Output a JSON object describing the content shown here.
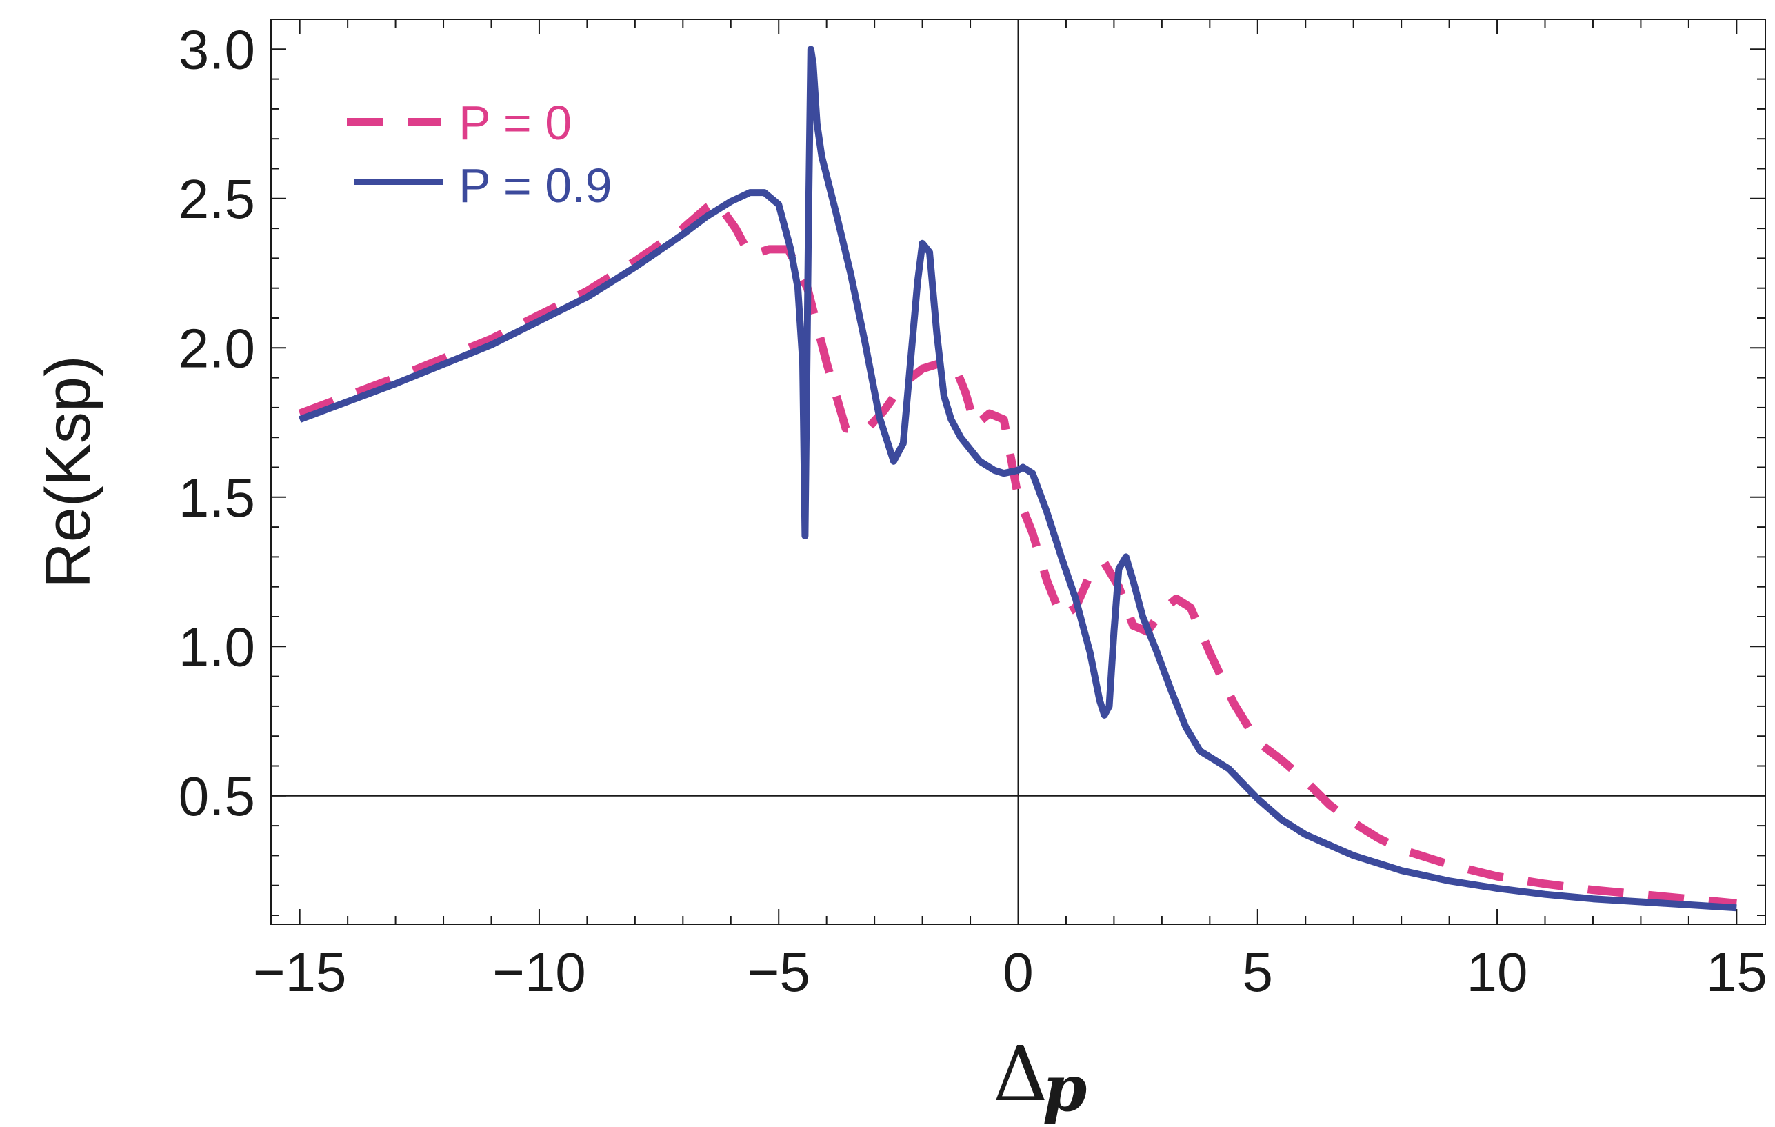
{
  "chart_data": {
    "type": "line",
    "title": "",
    "xlabel": "Δ",
    "xlabel_subscript": "p",
    "ylabel": "Re(Ksp)",
    "xlim": [
      -15.6,
      15.6
    ],
    "ylim": [
      0.07,
      3.1
    ],
    "x_ticks": [
      -15,
      -10,
      -5,
      0,
      5,
      10,
      15
    ],
    "x_tick_labels": [
      "−15",
      "−10",
      "−5",
      "0",
      "5",
      "10",
      "15"
    ],
    "y_ticks": [
      0.5,
      1.0,
      1.5,
      2.0,
      2.5,
      3.0
    ],
    "y_tick_labels": [
      "0.5",
      "1.0",
      "1.5",
      "2.0",
      "2.5",
      "3.0"
    ],
    "reference_lines": {
      "x": 0,
      "y": 0.5
    },
    "colors": {
      "p0": "#de3d8a",
      "p09": "#3c4a9c",
      "axis": "#1a1a1a"
    },
    "legend_position": "top-left",
    "series": [
      {
        "name": "P = 0",
        "style": "dashed",
        "color": "#de3d8a",
        "x": [
          -15,
          -13,
          -11,
          -9,
          -8,
          -7,
          -6.5,
          -6.3,
          -5.9,
          -5.6,
          -5.2,
          -4.8,
          -4.4,
          -4.0,
          -3.6,
          -3.2,
          -2.8,
          -2.4,
          -2.0,
          -1.6,
          -1.3,
          -1.1,
          -0.9,
          -0.6,
          -0.3,
          0,
          0.3,
          0.6,
          0.9,
          1.2,
          1.5,
          1.8,
          2.1,
          2.4,
          2.7,
          3.0,
          3.3,
          3.6,
          4.0,
          4.5,
          5.0,
          5.5,
          6.0,
          6.5,
          7.0,
          7.5,
          8.0,
          9.0,
          10,
          11,
          12,
          13,
          14,
          15
        ],
        "y": [
          1.78,
          1.9,
          2.03,
          2.19,
          2.29,
          2.4,
          2.47,
          2.49,
          2.4,
          2.31,
          2.33,
          2.33,
          2.2,
          1.95,
          1.73,
          1.72,
          1.79,
          1.88,
          1.93,
          1.95,
          1.93,
          1.85,
          1.74,
          1.78,
          1.76,
          1.5,
          1.38,
          1.22,
          1.1,
          1.13,
          1.24,
          1.28,
          1.2,
          1.07,
          1.05,
          1.12,
          1.16,
          1.13,
          0.98,
          0.81,
          0.68,
          0.62,
          0.55,
          0.47,
          0.41,
          0.36,
          0.32,
          0.27,
          0.23,
          0.205,
          0.185,
          0.17,
          0.155,
          0.14
        ]
      },
      {
        "name": "P = 0.9",
        "style": "solid",
        "color": "#3c4a9c",
        "x": [
          -15,
          -13,
          -11,
          -9,
          -8,
          -7,
          -6.5,
          -6.0,
          -5.6,
          -5.3,
          -5.0,
          -4.75,
          -4.6,
          -4.5,
          -4.45,
          -4.42,
          -4.38,
          -4.33,
          -4.28,
          -4.2,
          -4.1,
          -3.8,
          -3.5,
          -3.2,
          -2.9,
          -2.6,
          -2.4,
          -2.25,
          -2.1,
          -2.0,
          -1.85,
          -1.7,
          -1.55,
          -1.4,
          -1.2,
          -1.0,
          -0.8,
          -0.5,
          -0.3,
          0,
          0.1,
          0.3,
          0.6,
          0.9,
          1.2,
          1.5,
          1.7,
          1.8,
          1.9,
          2.0,
          2.1,
          2.25,
          2.4,
          2.6,
          2.9,
          3.2,
          3.5,
          3.8,
          4.1,
          4.4,
          4.7,
          5.0,
          5.5,
          6.0,
          7.0,
          8.0,
          9.0,
          10,
          11,
          12,
          13,
          14,
          15
        ],
        "y": [
          1.76,
          1.88,
          2.01,
          2.17,
          2.27,
          2.38,
          2.44,
          2.49,
          2.52,
          2.52,
          2.48,
          2.33,
          2.2,
          1.95,
          1.37,
          1.8,
          2.4,
          3.0,
          2.95,
          2.75,
          2.64,
          2.45,
          2.25,
          2.02,
          1.77,
          1.62,
          1.68,
          1.95,
          2.22,
          2.35,
          2.32,
          2.05,
          1.84,
          1.76,
          1.7,
          1.66,
          1.62,
          1.59,
          1.58,
          1.59,
          1.6,
          1.58,
          1.45,
          1.3,
          1.16,
          0.98,
          0.82,
          0.77,
          0.8,
          1.05,
          1.26,
          1.3,
          1.22,
          1.1,
          0.98,
          0.85,
          0.73,
          0.65,
          0.62,
          0.59,
          0.54,
          0.49,
          0.42,
          0.37,
          0.3,
          0.25,
          0.215,
          0.19,
          0.17,
          0.155,
          0.145,
          0.135,
          0.125
        ]
      }
    ]
  }
}
